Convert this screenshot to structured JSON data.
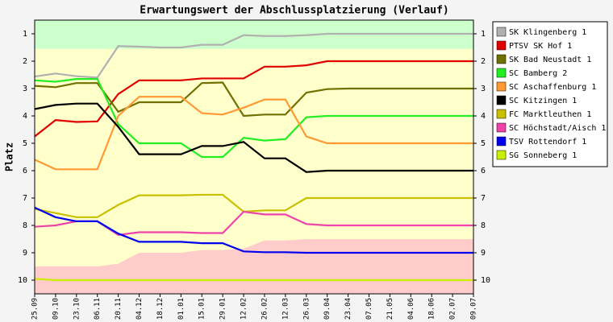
{
  "chart_data": {
    "type": "line",
    "title": "Erwartungswert der Abschlussplatzierung (Verlauf)",
    "y_label": "Platz",
    "categories": [
      "25.09",
      "09.10",
      "23.10",
      "06.11",
      "20.11",
      "04.12",
      "18.12",
      "01.01",
      "15.01",
      "29.01",
      "12.02",
      "26.02",
      "12.03",
      "26.03",
      "09.04",
      "23.04",
      "07.05",
      "21.05",
      "04.06",
      "18.06",
      "02.07",
      "09.07"
    ],
    "ylim": [
      10.5,
      0.5
    ],
    "yticks": [
      1,
      2,
      3,
      4,
      5,
      6,
      7,
      8,
      9,
      10
    ],
    "right_axis": true,
    "plot_background": "#ffffcc",
    "zones": [
      {
        "color": "#ccffcc",
        "edge": "top",
        "values": [
          1.55,
          1.55,
          1.55,
          1.55,
          1.55,
          1.55,
          1.55,
          1.55,
          1.55,
          1.55,
          1.55,
          1.55,
          1.55,
          1.55,
          1.55,
          1.55,
          1.55,
          1.55,
          1.55,
          1.55,
          1.55,
          1.55
        ]
      },
      {
        "color": "#ffcccc",
        "edge": "bottom",
        "values": [
          9.5,
          9.5,
          9.5,
          9.5,
          9.4,
          9.0,
          9.0,
          9.0,
          8.9,
          8.9,
          8.85,
          8.55,
          8.55,
          8.5,
          8.5,
          8.5,
          8.5,
          8.5,
          8.5,
          8.5,
          8.5,
          8.5
        ]
      }
    ],
    "series": [
      {
        "name": "SK Klingenberg 1",
        "color": "#b0b0b0",
        "values": [
          2.56,
          2.45,
          2.55,
          2.6,
          1.45,
          1.47,
          1.5,
          1.5,
          1.4,
          1.4,
          1.05,
          1.08,
          1.08,
          1.05,
          1.0,
          1.0,
          1.0,
          1.0,
          1.0,
          1.0,
          1.0,
          1.0
        ]
      },
      {
        "name": "PTSV SK Hof 1",
        "color": "#e00000",
        "values": [
          4.75,
          4.15,
          4.22,
          4.2,
          3.2,
          2.7,
          2.7,
          2.7,
          2.63,
          2.63,
          2.63,
          2.2,
          2.2,
          2.15,
          2.0,
          2.0,
          2.0,
          2.0,
          2.0,
          2.0,
          2.0,
          2.0
        ]
      },
      {
        "name": "SK Bad Neustadt 1",
        "color": "#707000",
        "values": [
          2.9,
          2.95,
          2.8,
          2.8,
          3.85,
          3.5,
          3.5,
          3.5,
          2.8,
          2.78,
          4.0,
          3.95,
          3.95,
          3.15,
          3.02,
          3.0,
          3.0,
          3.0,
          3.0,
          3.0,
          3.0,
          3.0
        ]
      },
      {
        "name": "SC Bamberg 2",
        "color": "#22ee22",
        "values": [
          2.7,
          2.75,
          2.65,
          2.65,
          4.3,
          5.0,
          5.0,
          5.0,
          5.5,
          5.5,
          4.8,
          4.9,
          4.85,
          4.05,
          4.0,
          4.0,
          4.0,
          4.0,
          4.0,
          4.0,
          4.0,
          4.0
        ]
      },
      {
        "name": "SC Aschaffenburg 1",
        "color": "#ff9933",
        "values": [
          5.6,
          5.95,
          5.95,
          5.95,
          4.0,
          3.3,
          3.3,
          3.3,
          3.9,
          3.95,
          3.7,
          3.4,
          3.4,
          4.75,
          5.0,
          5.0,
          5.0,
          5.0,
          5.0,
          5.0,
          5.0,
          5.0
        ]
      },
      {
        "name": "SC Kitzingen 1",
        "color": "#000000",
        "values": [
          3.75,
          3.6,
          3.55,
          3.55,
          4.4,
          5.4,
          5.4,
          5.4,
          5.1,
          5.1,
          4.95,
          5.55,
          5.55,
          6.05,
          6.0,
          6.0,
          6.0,
          6.0,
          6.0,
          6.0,
          6.0,
          6.0
        ]
      },
      {
        "name": "FC Marktleuthen 1",
        "color": "#c8c000",
        "values": [
          7.4,
          7.55,
          7.7,
          7.7,
          7.25,
          6.9,
          6.9,
          6.9,
          6.88,
          6.88,
          7.5,
          7.45,
          7.45,
          7.0,
          7.0,
          7.0,
          7.0,
          7.0,
          7.0,
          7.0,
          7.0,
          7.0
        ]
      },
      {
        "name": "SC Höchstadt/Aisch 1",
        "color": "#ee44aa",
        "values": [
          8.05,
          8.0,
          7.85,
          7.85,
          8.35,
          8.25,
          8.25,
          8.25,
          8.28,
          8.28,
          7.5,
          7.6,
          7.6,
          7.95,
          8.0,
          8.0,
          8.0,
          8.0,
          8.0,
          8.0,
          8.0,
          8.0
        ]
      },
      {
        "name": "TSV Rottendorf 1",
        "color": "#0000ee",
        "values": [
          7.35,
          7.7,
          7.85,
          7.85,
          8.3,
          8.6,
          8.6,
          8.6,
          8.65,
          8.65,
          8.95,
          8.98,
          8.98,
          9.0,
          9.0,
          9.0,
          9.0,
          9.0,
          9.0,
          9.0,
          9.0,
          9.0
        ]
      },
      {
        "name": "SG Sonneberg 1",
        "color": "#ccee00",
        "values": [
          9.95,
          10.0,
          10.0,
          10.0,
          10.0,
          10.0,
          10.0,
          10.0,
          10.0,
          10.0,
          10.0,
          10.0,
          10.0,
          10.0,
          10.0,
          10.0,
          10.0,
          10.0,
          10.0,
          10.0,
          10.0,
          10.0
        ]
      }
    ]
  }
}
